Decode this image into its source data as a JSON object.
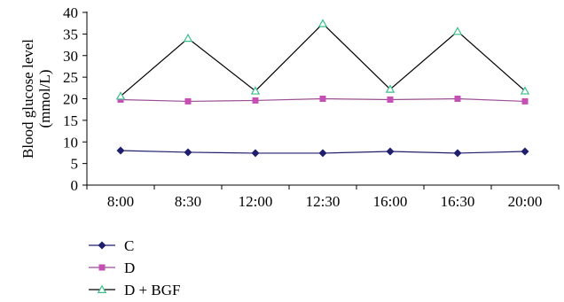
{
  "chart_data": {
    "type": "line",
    "title": "",
    "xlabel": "",
    "ylabel": [
      "Blood glucose level",
      "(mmol/L)"
    ],
    "ylim": [
      0,
      40
    ],
    "yticks": [
      0,
      5,
      10,
      15,
      20,
      25,
      30,
      35,
      40
    ],
    "categories": [
      "8:00",
      "8:30",
      "12:00",
      "12:30",
      "16:00",
      "16:30",
      "20:00"
    ],
    "grid": false,
    "legend_position": "bottom-left",
    "series": [
      {
        "name": "C",
        "marker": "diamond",
        "line_color": "#1f1f6e",
        "marker_color": "#1f1f6e",
        "values": [
          8.0,
          7.6,
          7.4,
          7.4,
          7.8,
          7.4,
          7.8
        ]
      },
      {
        "name": "D",
        "marker": "square",
        "line_color": "#9b4e93",
        "marker_color": "#c64fb4",
        "values": [
          19.8,
          19.4,
          19.6,
          20.0,
          19.8,
          20.0,
          19.4
        ]
      },
      {
        "name": "D + BGF",
        "marker": "triangle",
        "line_color": "#000000",
        "marker_color": "#3bbf8a",
        "values": [
          20.6,
          34.0,
          21.8,
          37.4,
          22.2,
          35.6,
          21.8
        ]
      }
    ]
  }
}
